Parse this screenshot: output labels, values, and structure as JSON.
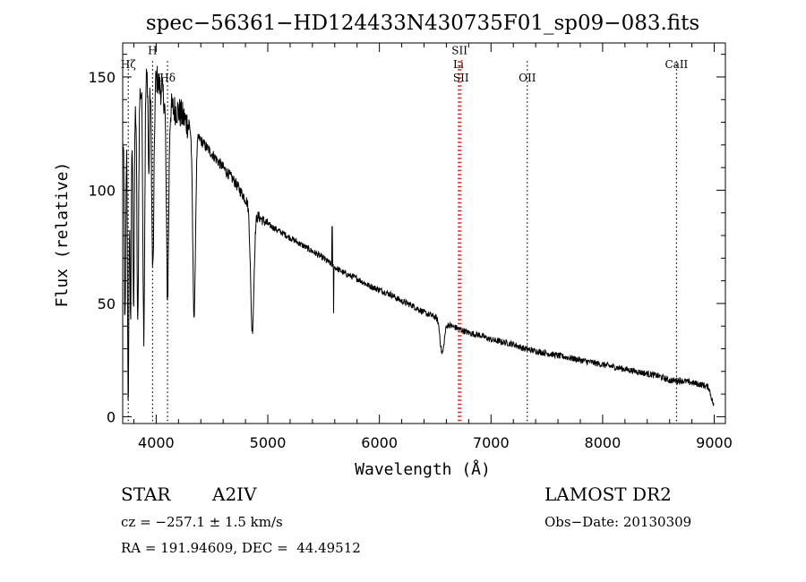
{
  "chart_data": {
    "type": "line",
    "title": "spec−56361−HD124433N430735F01_sp09−083.fits",
    "xlabel": "Wavelength (Å)",
    "ylabel": "Flux (relative)",
    "xlim": [
      3700,
      9100
    ],
    "ylim": [
      -3,
      165
    ],
    "xticks": [
      4000,
      5000,
      6000,
      7000,
      8000,
      9000
    ],
    "yticks": [
      0,
      50,
      100,
      150
    ],
    "grid": false,
    "continuum": [
      [
        3700,
        120
      ],
      [
        3800,
        135
      ],
      [
        3900,
        150
      ],
      [
        4000,
        150
      ],
      [
        4100,
        137
      ],
      [
        4200,
        135
      ],
      [
        4300,
        128
      ],
      [
        4400,
        122
      ],
      [
        4500,
        116
      ],
      [
        4600,
        110
      ],
      [
        4700,
        104
      ],
      [
        4800,
        96
      ],
      [
        4900,
        89
      ],
      [
        5000,
        85
      ],
      [
        5100,
        82
      ],
      [
        5200,
        79
      ],
      [
        5300,
        76
      ],
      [
        5400,
        73
      ],
      [
        5500,
        70
      ],
      [
        5600,
        66
      ],
      [
        5700,
        63
      ],
      [
        5800,
        61
      ],
      [
        5900,
        58
      ],
      [
        6000,
        56
      ],
      [
        6100,
        54
      ],
      [
        6200,
        51
      ],
      [
        6300,
        49
      ],
      [
        6400,
        46
      ],
      [
        6500,
        44
      ],
      [
        6600,
        41
      ],
      [
        6700,
        39
      ],
      [
        6800,
        37
      ],
      [
        6900,
        36
      ],
      [
        7000,
        34
      ],
      [
        7100,
        33
      ],
      [
        7200,
        32
      ],
      [
        7300,
        30
      ],
      [
        7400,
        29
      ],
      [
        7500,
        28
      ],
      [
        7600,
        27
      ],
      [
        7700,
        26
      ],
      [
        7800,
        25
      ],
      [
        7900,
        24
      ],
      [
        8000,
        23
      ],
      [
        8100,
        22
      ],
      [
        8200,
        21
      ],
      [
        8300,
        20
      ],
      [
        8400,
        19
      ],
      [
        8500,
        18
      ],
      [
        8600,
        16
      ],
      [
        8700,
        16
      ],
      [
        8800,
        15
      ],
      [
        8900,
        14
      ],
      [
        8950,
        13
      ],
      [
        9000,
        4
      ]
    ],
    "absorption_lines": [
      {
        "center": 3721,
        "width": 6,
        "min": 40
      },
      {
        "center": 3750,
        "width": 6,
        "min": 5
      },
      {
        "center": 3771,
        "width": 6,
        "min": 45
      },
      {
        "center": 3798,
        "width": 6,
        "min": 50
      },
      {
        "center": 3835,
        "width": 7,
        "min": 38
      },
      {
        "center": 3889,
        "width": 8,
        "min": 38
      },
      {
        "center": 3934,
        "width": 5,
        "min": 105
      },
      {
        "center": 3970,
        "width": 10,
        "min": 64
      },
      {
        "center": 4102,
        "width": 10,
        "min": 53
      },
      {
        "center": 4340,
        "width": 12,
        "min": 44
      },
      {
        "center": 4861,
        "width": 15,
        "min": 38
      },
      {
        "center": 6563,
        "width": 18,
        "min": 28
      }
    ],
    "emission_spikes": [
      {
        "center": 5577,
        "peak": 83
      },
      {
        "center": 5590,
        "peak": 45
      }
    ],
    "line_markers": [
      {
        "label": "Hζ",
        "wavelength": 3750,
        "label_flux": 154,
        "color": "#000000"
      },
      {
        "label": "H",
        "wavelength": 3968,
        "label_flux": 160,
        "color": "#000000"
      },
      {
        "label": "Hδ",
        "wavelength": 4102,
        "label_flux": 148,
        "color": "#000000"
      },
      {
        "label": "SII",
        "wavelength": 6718,
        "label_flux": 160,
        "color": "#cc0000"
      },
      {
        "label": "Li",
        "wavelength": 6708,
        "label_flux": 154,
        "color": "#cc0000"
      },
      {
        "label": "SII",
        "wavelength": 6731,
        "label_flux": 148,
        "color": "#cc0000"
      },
      {
        "label": "OII",
        "wavelength": 7325,
        "label_flux": 148,
        "color": "#000000"
      },
      {
        "label": "CaII",
        "wavelength": 8662,
        "label_flux": 154,
        "color": "#000000"
      }
    ]
  },
  "info": {
    "object_class": "STAR",
    "subclass": "A2IV",
    "survey": "LAMOST DR2",
    "cz": "cz = −257.1 ± 1.5 km/s",
    "obs_date": "Obs−Date: 20130309",
    "coords": "RA = 191.94609, DEC =  44.49512"
  }
}
